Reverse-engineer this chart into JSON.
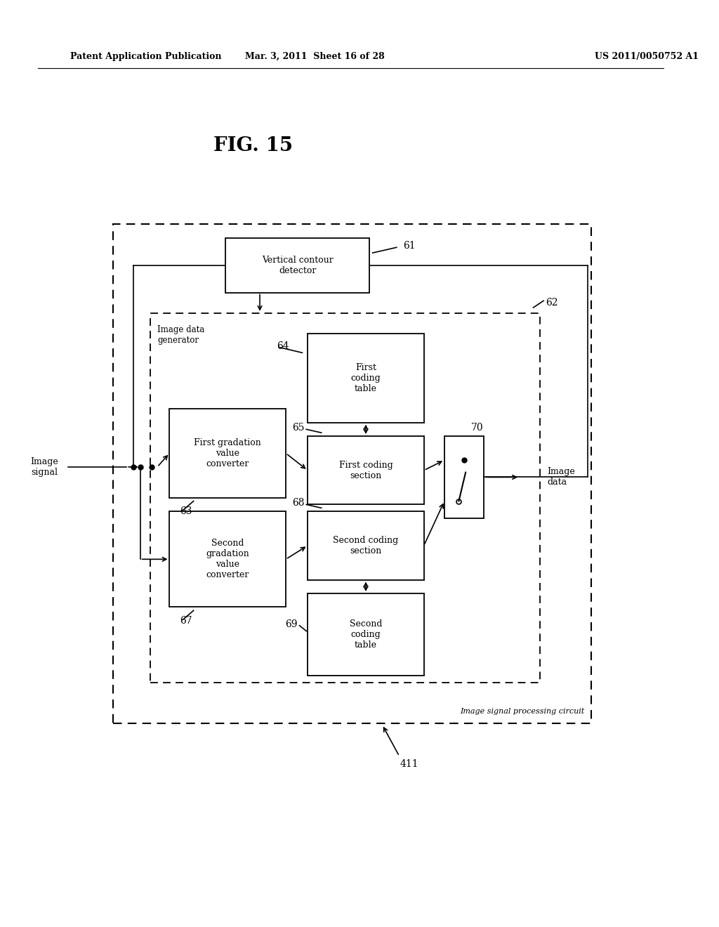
{
  "fig_title": "FIG. 15",
  "header_left": "Patent Application Publication",
  "header_mid": "Mar. 3, 2011  Sheet 16 of 28",
  "header_right": "US 2011/0050752 A1",
  "bg_color": "#ffffff",
  "text_color": "#000000",
  "image_signal_label": "Image\nsignal",
  "image_data_label": "Image\ndata",
  "outer_box_label": "Image signal processing circuit",
  "outer_box_num": "411",
  "vcd_label": "Vertical contour\ndetector",
  "vcd_num": "61",
  "img_data_gen_label": "Image data\ngenerator",
  "inner_box_num": "62",
  "fct_label": "First\ncoding\ntable",
  "fct_num": "64",
  "fgv_label": "First gradation\nvalue\nconverter",
  "fgv_num": "63",
  "fcs_label": "First coding\nsection",
  "fcs_num": "65",
  "sgv_label": "Second\ngradation\nvalue\nconverter",
  "sgv_num": "67",
  "scs_label": "Second coding\nsection",
  "scs_num": "68",
  "sct_label": "Second\ncoding\ntable",
  "sct_num": "69",
  "sw_num": "70"
}
